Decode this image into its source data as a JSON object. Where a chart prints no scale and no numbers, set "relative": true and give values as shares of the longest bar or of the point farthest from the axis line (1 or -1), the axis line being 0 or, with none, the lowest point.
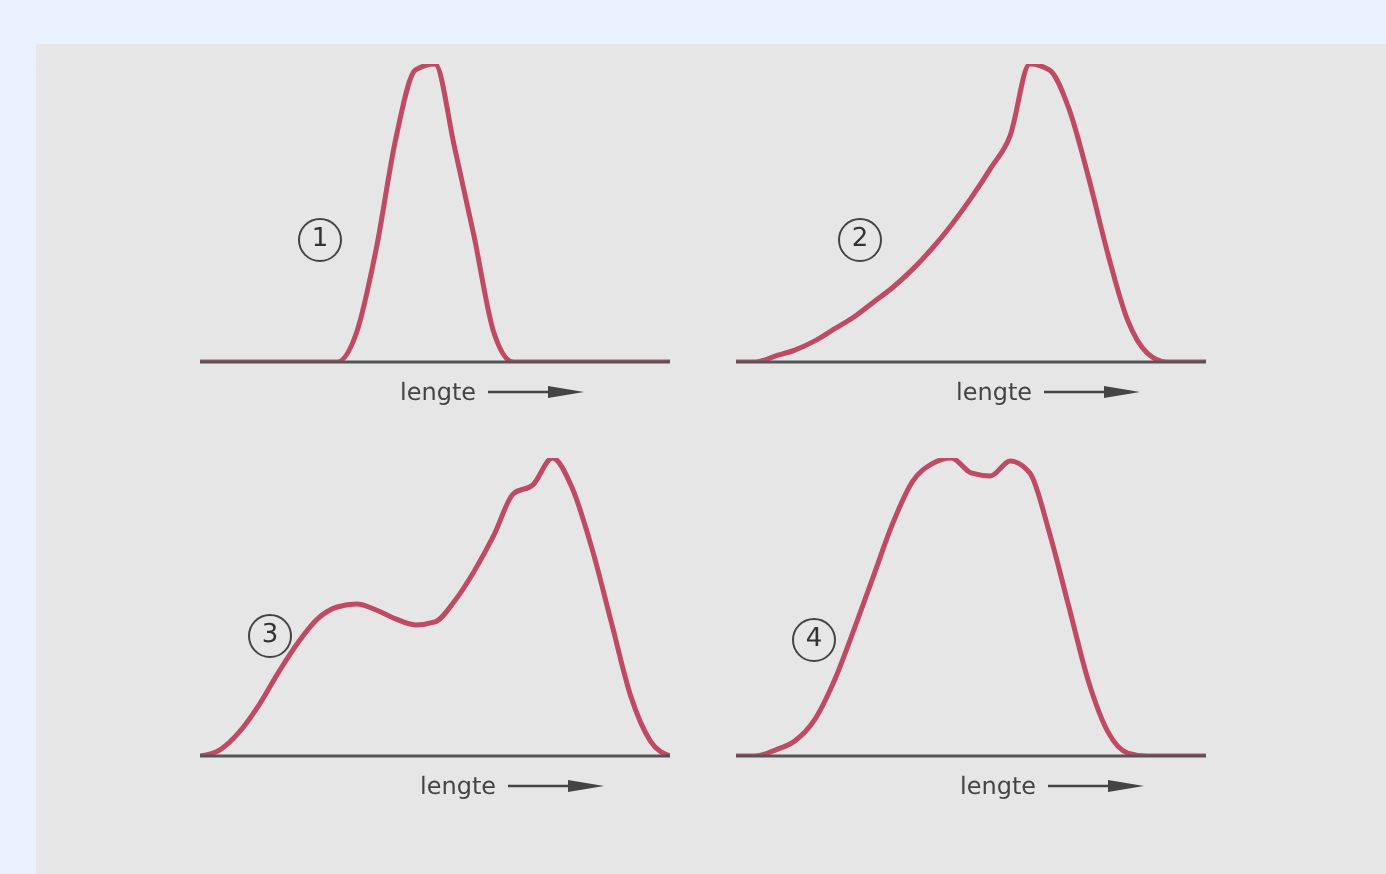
{
  "chart_data": [
    {
      "type": "line",
      "relative": true,
      "xlabel": "lengte",
      "annotations": [
        "1"
      ],
      "categories": [
        null,
        null,
        null,
        null,
        null,
        null,
        null,
        null,
        null,
        null,
        null,
        null,
        null,
        null,
        null,
        null,
        null,
        null,
        null,
        null,
        null,
        null,
        null,
        null,
        null
      ],
      "series": [
        {
          "color": "#c04a64",
          "values": [
            0,
            0,
            0,
            0,
            0,
            0,
            0,
            0,
            0.1,
            0.38,
            0.75,
            0.98,
            1,
            0.72,
            0.42,
            0.1,
            0,
            0,
            0,
            0,
            0,
            0,
            0,
            0,
            0
          ]
        }
      ]
    },
    {
      "type": "line",
      "relative": true,
      "xlabel": "lengte",
      "annotations": [
        "2"
      ],
      "categories": [
        null,
        null,
        null,
        null,
        null,
        null,
        null,
        null,
        null,
        null,
        null,
        null,
        null,
        null,
        null,
        null,
        null,
        null,
        null,
        null,
        null,
        null,
        null,
        null,
        null
      ],
      "series": [
        {
          "color": "#c04a64",
          "values": [
            0,
            0,
            0.02,
            0.04,
            0.07,
            0.11,
            0.15,
            0.2,
            0.25,
            0.31,
            0.38,
            0.46,
            0.55,
            0.65,
            0.76,
            1,
            0.98,
            0.85,
            0.62,
            0.36,
            0.14,
            0.03,
            0,
            0,
            0
          ]
        }
      ]
    },
    {
      "type": "line",
      "relative": true,
      "xlabel": "lengte",
      "annotations": [
        "3"
      ],
      "categories": [
        null,
        null,
        null,
        null,
        null,
        null,
        null,
        null,
        null,
        null,
        null,
        null,
        null,
        null,
        null,
        null,
        null,
        null,
        null,
        null,
        null,
        null,
        null,
        null,
        null
      ],
      "series": [
        {
          "color": "#c04a64",
          "values": [
            0,
            0.02,
            0.08,
            0.17,
            0.28,
            0.38,
            0.46,
            0.5,
            0.51,
            0.49,
            0.46,
            0.44,
            0.45,
            0.52,
            0.62,
            0.74,
            0.88,
            0.91,
            1,
            0.9,
            0.7,
            0.45,
            0.2,
            0.05,
            0
          ]
        }
      ]
    },
    {
      "type": "line",
      "relative": true,
      "xlabel": "lengte",
      "annotations": [
        "4"
      ],
      "categories": [
        null,
        null,
        null,
        null,
        null,
        null,
        null,
        null,
        null,
        null,
        null,
        null,
        null,
        null,
        null,
        null,
        null,
        null,
        null,
        null,
        null,
        null,
        null,
        null,
        null
      ],
      "series": [
        {
          "color": "#c04a64",
          "values": [
            0,
            0,
            0.02,
            0.05,
            0.12,
            0.25,
            0.42,
            0.6,
            0.78,
            0.92,
            0.98,
            1,
            0.95,
            0.94,
            0.99,
            0.95,
            0.75,
            0.5,
            0.25,
            0.08,
            0.01,
            0,
            0,
            0,
            0
          ]
        }
      ]
    }
  ]
}
